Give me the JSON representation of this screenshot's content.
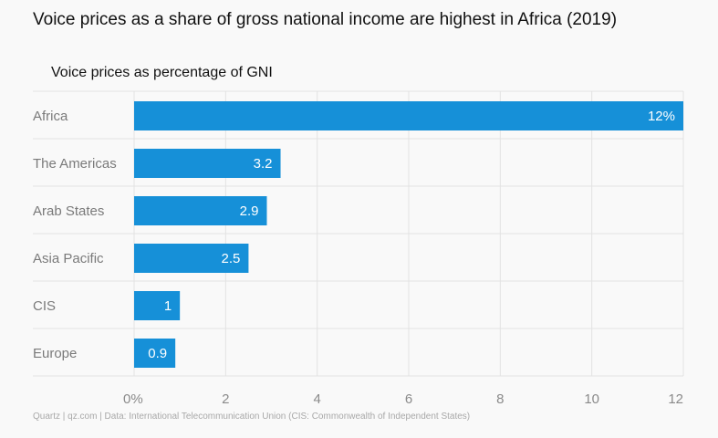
{
  "header": {
    "title": "Voice prices as a share of gross national income are highest in Africa (2019)",
    "subtitle": "Voice prices as percentage of GNI"
  },
  "footer": {
    "source": "Quartz | qz.com | Data: International Telecommunication Union (CIS: Commonwealth of Independent States)"
  },
  "colors": {
    "bar": "#1690d8",
    "bar_label": "#ffffff",
    "category_label": "#7a7a7a",
    "grid": "#e2e2e2",
    "tick": "#8a8a8a"
  },
  "chart_data": {
    "type": "bar",
    "orientation": "horizontal",
    "title": "Voice prices as a share of gross national income are highest in Africa (2019)",
    "ylabel": "Voice prices as percentage of GNI",
    "categories": [
      "Africa",
      "The Americas",
      "Arab States",
      "Asia Pacific",
      "CIS",
      "Europe"
    ],
    "values": [
      12,
      3.2,
      2.9,
      2.5,
      1,
      0.9
    ],
    "value_labels": [
      "12%",
      "3.2",
      "2.9",
      "2.5",
      "1",
      "0.9"
    ],
    "xlim": [
      0,
      12
    ],
    "xticks": [
      0,
      2,
      4,
      6,
      8,
      10,
      12
    ],
    "xtick_labels": [
      "0%",
      "2",
      "4",
      "6",
      "8",
      "10",
      "12"
    ],
    "grid": true
  }
}
